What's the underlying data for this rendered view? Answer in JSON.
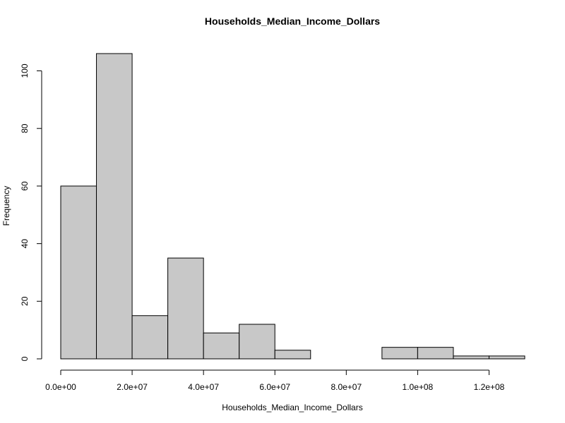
{
  "chart_data": {
    "type": "bar",
    "title": "Households_Median_Income_Dollars",
    "xlabel": "Households_Median_Income_Dollars",
    "ylabel": "Frequency",
    "bin_edges": [
      0,
      10000000,
      20000000,
      30000000,
      40000000,
      50000000,
      60000000,
      70000000,
      80000000,
      90000000,
      100000000,
      110000000,
      120000000,
      130000000
    ],
    "values": [
      60,
      106,
      15,
      35,
      9,
      12,
      3,
      0,
      0,
      4,
      4,
      1,
      1
    ],
    "xlim": [
      0,
      130000000
    ],
    "ylim": [
      0,
      106
    ],
    "x_ticks": [
      0,
      20000000,
      40000000,
      60000000,
      80000000,
      100000000,
      120000000
    ],
    "x_tick_labels": [
      "0.0e+00",
      "2.0e+07",
      "4.0e+07",
      "6.0e+07",
      "8.0e+07",
      "1.0e+08",
      "1.2e+08"
    ],
    "y_ticks": [
      0,
      20,
      40,
      60,
      80,
      100
    ],
    "y_tick_labels": [
      "0",
      "20",
      "40",
      "60",
      "80",
      "100"
    ],
    "bar_color": "#c8c8c8",
    "grid": false,
    "legend": "none"
  }
}
